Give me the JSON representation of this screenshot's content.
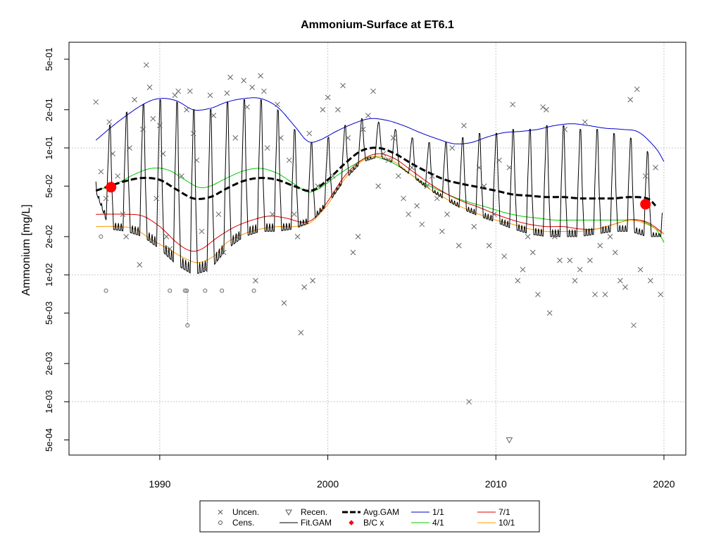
{
  "chart_data": {
    "type": "scatter",
    "title": "Ammonium-Surface at ET6.1",
    "xlabel": "",
    "ylabel": "Ammonium [mg/L]",
    "xlim": [
      1984.6,
      2021.3
    ],
    "ylim": [
      0.00038,
      0.68
    ],
    "yscale": "log",
    "grid": true,
    "legend_position": "bottom-center",
    "x_ticks": [
      1990,
      2000,
      2010,
      2020
    ],
    "x_tick_labels": [
      "1990",
      "2000",
      "2010",
      "2020"
    ],
    "y_ticks": [
      0.0005,
      0.001,
      0.002,
      0.005,
      0.01,
      0.02,
      0.05,
      0.1,
      0.2,
      0.5
    ],
    "y_tick_labels": [
      "5e-04",
      "1e-03",
      "2e-03",
      "5e-03",
      "1e-02",
      "2e-02",
      "5e-02",
      "1e-01",
      "2e-01",
      "5e-01"
    ],
    "legend": [
      {
        "label": "Uncen.",
        "symbol": "x",
        "color": "#555555"
      },
      {
        "label": "Cens.",
        "symbol": "circle",
        "color": "#555555"
      },
      {
        "label": "Recen.",
        "symbol": "triangle-down",
        "color": "#555555"
      },
      {
        "label": "Fit.GAM",
        "symbol": "line",
        "color": "#000000"
      },
      {
        "label": "Avg.GAM",
        "symbol": "dashed-line",
        "color": "#000000"
      },
      {
        "label": "B/C x",
        "symbol": "diamond",
        "color": "#ff0000"
      },
      {
        "label": "1/1",
        "symbol": "line",
        "color": "#0000cc"
      },
      {
        "label": "4/1",
        "symbol": "line",
        "color": "#00cc00"
      },
      {
        "label": "7/1",
        "symbol": "line",
        "color": "#dd0000"
      },
      {
        "label": "10/1",
        "symbol": "line",
        "color": "#ff9900"
      }
    ],
    "series": [
      {
        "name": "1/1",
        "color": "#0000cc",
        "x": [
          1986.2,
          1987.5,
          1989.0,
          1990.0,
          1991.0,
          1992.0,
          1993.0,
          1994.0,
          1995.0,
          1996.0,
          1997.0,
          1998.0,
          1998.8,
          1999.5,
          2000.5,
          2001.5,
          2002.5,
          2003.5,
          2004.5,
          2005.5,
          2006.5,
          2007.5,
          2008.5,
          2009.5,
          2010.5,
          2011.5,
          2012.5,
          2013.5,
          2014.5,
          2015.5,
          2016.5,
          2017.5,
          2018.5,
          2019.5,
          2020.0
        ],
        "y": [
          0.115,
          0.16,
          0.22,
          0.245,
          0.235,
          0.2,
          0.205,
          0.23,
          0.245,
          0.245,
          0.21,
          0.15,
          0.113,
          0.115,
          0.135,
          0.155,
          0.17,
          0.165,
          0.15,
          0.132,
          0.118,
          0.108,
          0.11,
          0.122,
          0.132,
          0.135,
          0.14,
          0.15,
          0.155,
          0.15,
          0.143,
          0.14,
          0.133,
          0.1,
          0.078
        ]
      },
      {
        "name": "4/1",
        "color": "#00cc00",
        "x": [
          1986.2,
          1987.5,
          1988.5,
          1989.5,
          1990.5,
          1991.5,
          1992.3,
          1993.0,
          1994.0,
          1995.0,
          1996.0,
          1997.0,
          1998.0,
          1998.8,
          1999.5,
          2000.5,
          2001.5,
          2002.5,
          2003.5,
          2004.5,
          2005.5,
          2006.5,
          2007.5,
          2008.5,
          2009.5,
          2010.5,
          2011.5,
          2012.5,
          2013.5,
          2014.5,
          2015.5,
          2016.5,
          2017.5,
          2018.5,
          2019.5,
          2020.0
        ],
        "y": [
          0.046,
          0.053,
          0.062,
          0.069,
          0.067,
          0.056,
          0.049,
          0.05,
          0.058,
          0.066,
          0.069,
          0.063,
          0.052,
          0.045,
          0.048,
          0.06,
          0.073,
          0.085,
          0.08,
          0.068,
          0.055,
          0.047,
          0.041,
          0.037,
          0.034,
          0.031,
          0.029,
          0.028,
          0.027,
          0.027,
          0.027,
          0.027,
          0.027,
          0.027,
          0.023,
          0.018
        ]
      },
      {
        "name": "7/1",
        "color": "#dd0000",
        "x": [
          1986.2,
          1988.0,
          1989.0,
          1990.0,
          1991.0,
          1991.8,
          1992.5,
          1993.5,
          1994.5,
          1995.5,
          1996.5,
          1997.5,
          1998.5,
          1999.2,
          2000.0,
          2001.0,
          2002.0,
          2003.0,
          2004.0,
          2005.0,
          2006.0,
          2007.0,
          2008.0,
          2009.0,
          2010.0,
          2011.0,
          2012.0,
          2013.0,
          2014.0,
          2015.0,
          2016.0,
          2017.0,
          2018.0,
          2019.0,
          2020.0
        ],
        "y": [
          0.03,
          0.03,
          0.029,
          0.024,
          0.018,
          0.0155,
          0.016,
          0.02,
          0.024,
          0.027,
          0.029,
          0.028,
          0.026,
          0.028,
          0.038,
          0.06,
          0.08,
          0.09,
          0.082,
          0.066,
          0.053,
          0.044,
          0.038,
          0.034,
          0.03,
          0.027,
          0.025,
          0.024,
          0.024,
          0.023,
          0.023,
          0.025,
          0.027,
          0.026,
          0.021
        ]
      },
      {
        "name": "10/1",
        "color": "#ff9900",
        "x": [
          1986.2,
          1987.5,
          1988.5,
          1989.5,
          1990.5,
          1991.5,
          1992.3,
          1993.2,
          1994.0,
          1995.0,
          1996.0,
          1997.0,
          1998.0,
          1999.0,
          2000.0,
          2001.0,
          2002.0,
          2003.0,
          2004.0,
          2005.0,
          2006.0,
          2007.0,
          2008.0,
          2009.0,
          2010.0,
          2011.0,
          2012.0,
          2013.0,
          2014.0,
          2015.0,
          2016.0,
          2017.0,
          2018.0,
          2019.0,
          2020.0
        ],
        "y": [
          0.024,
          0.024,
          0.023,
          0.019,
          0.016,
          0.0135,
          0.0125,
          0.014,
          0.018,
          0.021,
          0.023,
          0.024,
          0.024,
          0.026,
          0.036,
          0.057,
          0.078,
          0.086,
          0.077,
          0.061,
          0.048,
          0.04,
          0.034,
          0.03,
          0.027,
          0.025,
          0.023,
          0.022,
          0.022,
          0.022,
          0.023,
          0.025,
          0.027,
          0.025,
          0.021
        ]
      },
      {
        "name": "Avg.GAM",
        "color": "#000000",
        "dashed": true,
        "x": [
          1986.2,
          1987.0,
          1988.0,
          1989.0,
          1990.0,
          1991.0,
          1992.0,
          1993.0,
          1994.0,
          1995.0,
          1996.0,
          1997.0,
          1998.0,
          1999.0,
          2000.0,
          2001.0,
          2002.0,
          2003.0,
          2004.0,
          2005.0,
          2006.0,
          2007.0,
          2008.0,
          2009.0,
          2010.0,
          2011.0,
          2012.0,
          2013.0,
          2014.0,
          2015.0,
          2016.0,
          2017.0,
          2018.0,
          2019.0,
          2019.5
        ],
        "y": [
          0.046,
          0.05,
          0.055,
          0.058,
          0.056,
          0.047,
          0.04,
          0.041,
          0.048,
          0.055,
          0.058,
          0.056,
          0.05,
          0.046,
          0.056,
          0.075,
          0.095,
          0.1,
          0.09,
          0.075,
          0.064,
          0.056,
          0.052,
          0.049,
          0.046,
          0.043,
          0.042,
          0.041,
          0.041,
          0.04,
          0.04,
          0.04,
          0.041,
          0.04,
          0.035
        ]
      },
      {
        "name": "Fit.GAM",
        "color": "#000000",
        "seasonal": true,
        "x": [
          1986.2,
          1987.0,
          1988.0,
          1989.0,
          1990.0,
          1991.0,
          1992.0,
          1993.0,
          1994.0,
          1995.0,
          1996.0,
          1997.0,
          1998.0,
          1999.0,
          2000.0,
          2001.0,
          2002.0,
          2003.0,
          2004.0,
          2005.0,
          2006.0,
          2007.0,
          2008.0,
          2009.0,
          2010.0,
          2011.0,
          2012.0,
          2013.0,
          2014.0,
          2015.0,
          2016.0,
          2017.0,
          2018.0,
          2019.0,
          2019.9
        ],
        "y_max": [
          0.11,
          0.15,
          0.19,
          0.22,
          0.24,
          0.23,
          0.2,
          0.2,
          0.23,
          0.24,
          0.24,
          0.2,
          0.14,
          0.11,
          0.12,
          0.15,
          0.17,
          0.16,
          0.14,
          0.12,
          0.11,
          0.11,
          0.12,
          0.13,
          0.13,
          0.14,
          0.14,
          0.15,
          0.15,
          0.14,
          0.14,
          0.13,
          0.12,
          0.095,
          0.045
        ],
        "y_min": [
          0.045,
          0.023,
          0.022,
          0.02,
          0.016,
          0.012,
          0.01,
          0.011,
          0.016,
          0.02,
          0.022,
          0.022,
          0.023,
          0.026,
          0.036,
          0.056,
          0.077,
          0.085,
          0.076,
          0.06,
          0.047,
          0.039,
          0.033,
          0.029,
          0.026,
          0.023,
          0.021,
          0.02,
          0.02,
          0.02,
          0.021,
          0.022,
          0.022,
          0.02,
          0.02
        ]
      }
    ],
    "points": {
      "uncensored": [
        [
          1986.2,
          0.23
        ],
        [
          1986.5,
          0.065
        ],
        [
          1986.8,
          0.04
        ],
        [
          1987.0,
          0.16
        ],
        [
          1987.2,
          0.09
        ],
        [
          1987.5,
          0.06
        ],
        [
          1987.8,
          0.03
        ],
        [
          1988.0,
          0.02
        ],
        [
          1988.2,
          0.1
        ],
        [
          1988.5,
          0.24
        ],
        [
          1988.8,
          0.012
        ],
        [
          1989.0,
          0.14
        ],
        [
          1989.2,
          0.45
        ],
        [
          1989.4,
          0.3
        ],
        [
          1989.6,
          0.17
        ],
        [
          1989.8,
          0.04
        ],
        [
          1990.0,
          0.15
        ],
        [
          1990.2,
          0.09
        ],
        [
          1990.4,
          0.02
        ],
        [
          1990.6,
          0.016
        ],
        [
          1990.9,
          0.26
        ],
        [
          1991.1,
          0.28
        ],
        [
          1991.3,
          0.06
        ],
        [
          1991.6,
          0.2
        ],
        [
          1991.8,
          0.28
        ],
        [
          1992.0,
          0.13
        ],
        [
          1992.2,
          0.08
        ],
        [
          1992.5,
          0.022
        ],
        [
          1992.7,
          0.011
        ],
        [
          1993.0,
          0.26
        ],
        [
          1993.2,
          0.18
        ],
        [
          1993.5,
          0.03
        ],
        [
          1993.8,
          0.015
        ],
        [
          1994.0,
          0.27
        ],
        [
          1994.2,
          0.36
        ],
        [
          1994.5,
          0.12
        ],
        [
          1994.7,
          0.02
        ],
        [
          1995.0,
          0.34
        ],
        [
          1995.2,
          0.21
        ],
        [
          1995.5,
          0.3
        ],
        [
          1995.7,
          0.009
        ],
        [
          1996.0,
          0.37
        ],
        [
          1996.2,
          0.28
        ],
        [
          1996.4,
          0.1
        ],
        [
          1996.7,
          0.03
        ],
        [
          1997.0,
          0.22
        ],
        [
          1997.2,
          0.12
        ],
        [
          1997.4,
          0.006
        ],
        [
          1997.7,
          0.08
        ],
        [
          1998.0,
          0.03
        ],
        [
          1998.2,
          0.02
        ],
        [
          1998.4,
          0.0035
        ],
        [
          1998.6,
          0.008
        ],
        [
          1998.9,
          0.13
        ],
        [
          1999.1,
          0.009
        ],
        [
          1999.4,
          0.05
        ],
        [
          1999.7,
          0.2
        ],
        [
          2000.0,
          0.25
        ],
        [
          2000.3,
          0.06
        ],
        [
          2000.6,
          0.2
        ],
        [
          2000.9,
          0.31
        ],
        [
          2001.2,
          0.12
        ],
        [
          2001.5,
          0.015
        ],
        [
          2001.8,
          0.02
        ],
        [
          2002.1,
          0.14
        ],
        [
          2002.4,
          0.18
        ],
        [
          2002.7,
          0.28
        ],
        [
          2003.0,
          0.05
        ],
        [
          2003.3,
          0.09
        ],
        [
          2003.6,
          0.08
        ],
        [
          2003.9,
          0.12
        ],
        [
          2004.2,
          0.06
        ],
        [
          2004.5,
          0.04
        ],
        [
          2004.8,
          0.03
        ],
        [
          2005.0,
          0.07
        ],
        [
          2005.3,
          0.035
        ],
        [
          2005.6,
          0.025
        ],
        [
          2005.9,
          0.05
        ],
        [
          2006.2,
          0.06
        ],
        [
          2006.5,
          0.04
        ],
        [
          2006.8,
          0.022
        ],
        [
          2007.1,
          0.03
        ],
        [
          2007.4,
          0.1
        ],
        [
          2007.8,
          0.017
        ],
        [
          2008.1,
          0.15
        ],
        [
          2008.4,
          0.001
        ],
        [
          2008.7,
          0.024
        ],
        [
          2009.0,
          0.07
        ],
        [
          2009.3,
          0.05
        ],
        [
          2009.6,
          0.017
        ],
        [
          2009.9,
          0.03
        ],
        [
          2010.2,
          0.08
        ],
        [
          2010.5,
          0.014
        ],
        [
          2010.8,
          0.07
        ],
        [
          2011.0,
          0.22
        ],
        [
          2011.3,
          0.009
        ],
        [
          2011.6,
          0.011
        ],
        [
          2011.9,
          0.02
        ],
        [
          2012.2,
          0.015
        ],
        [
          2012.5,
          0.007
        ],
        [
          2012.8,
          0.21
        ],
        [
          2013.0,
          0.2
        ],
        [
          2013.2,
          0.005
        ],
        [
          2013.5,
          0.02
        ],
        [
          2013.8,
          0.013
        ],
        [
          2014.1,
          0.14
        ],
        [
          2014.4,
          0.013
        ],
        [
          2014.7,
          0.009
        ],
        [
          2015.0,
          0.011
        ],
        [
          2015.3,
          0.16
        ],
        [
          2015.6,
          0.013
        ],
        [
          2015.9,
          0.007
        ],
        [
          2016.2,
          0.017
        ],
        [
          2016.5,
          0.007
        ],
        [
          2016.8,
          0.02
        ],
        [
          2017.1,
          0.015
        ],
        [
          2017.4,
          0.009
        ],
        [
          2017.7,
          0.008
        ],
        [
          2018.0,
          0.24
        ],
        [
          2018.2,
          0.004
        ],
        [
          2018.4,
          0.29
        ],
        [
          2018.6,
          0.011
        ],
        [
          2018.9,
          0.06
        ],
        [
          2019.2,
          0.009
        ],
        [
          2019.5,
          0.07
        ],
        [
          2019.8,
          0.007
        ]
      ],
      "censored": [
        [
          1986.5,
          0.02
        ],
        [
          1986.8,
          0.0075
        ],
        [
          1990.6,
          0.0075
        ],
        [
          1991.5,
          0.0075
        ],
        [
          1991.6,
          0.0075
        ],
        [
          1991.65,
          0.004
        ],
        [
          1992.7,
          0.0075
        ],
        [
          1993.7,
          0.0075
        ],
        [
          1995.6,
          0.0075
        ]
      ],
      "recensored": [
        [
          2010.8,
          0.0005
        ]
      ],
      "bc_markers": [
        [
          1987.1,
          0.049
        ],
        [
          2018.9,
          0.036
        ]
      ]
    }
  }
}
